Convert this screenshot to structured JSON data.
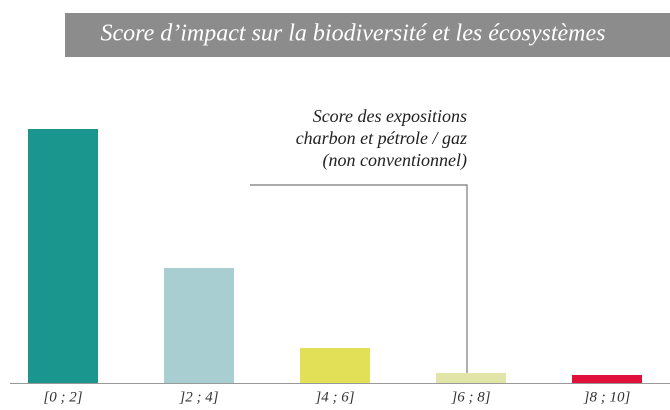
{
  "chart_data": {
    "type": "bar",
    "title": "Score d’impact sur la biodiversité et les écosystèmes",
    "categories": [
      "[0 ; 2]",
      "]2 ; 4]",
      "]4 ; 6]",
      "]6 ; 8]",
      "]8 ; 10]"
    ],
    "values": [
      254,
      115,
      35,
      10,
      8
    ],
    "colors": [
      "#1a968f",
      "#a9ced1",
      "#e1e057",
      "#e1e6a8",
      "#e0103a"
    ],
    "annotation": [
      "Score des expositions",
      "charbon et pétrole / gaz",
      "(non conventionnel)"
    ]
  }
}
